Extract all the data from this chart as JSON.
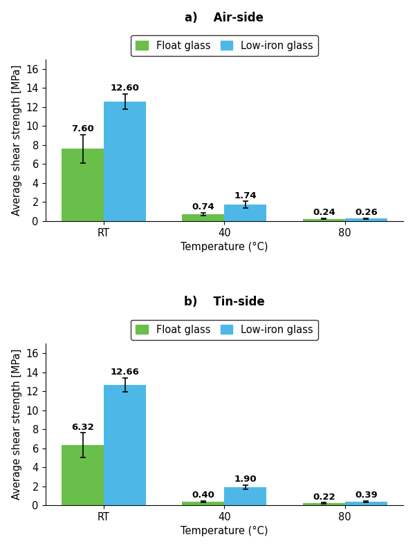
{
  "subplot_a": {
    "title_left": "a)",
    "title_right": "Air-side",
    "categories": [
      "RT",
      "40",
      "80"
    ],
    "float_values": [
      7.6,
      0.74,
      0.24
    ],
    "lowiron_values": [
      12.6,
      1.74,
      0.26
    ],
    "float_errors": [
      1.5,
      0.15,
      0.05
    ],
    "lowiron_errors": [
      0.8,
      0.35,
      0.05
    ],
    "float_labels": [
      "7.60",
      "0.74",
      "0.24"
    ],
    "lowiron_labels": [
      "12.60",
      "1.74",
      "0.26"
    ]
  },
  "subplot_b": {
    "title_left": "b)",
    "title_right": "Tin-side",
    "categories": [
      "RT",
      "40",
      "80"
    ],
    "float_values": [
      6.32,
      0.4,
      0.22
    ],
    "lowiron_values": [
      12.66,
      1.9,
      0.39
    ],
    "float_errors": [
      1.3,
      0.07,
      0.04
    ],
    "lowiron_errors": [
      0.75,
      0.22,
      0.06
    ],
    "float_labels": [
      "6.32",
      "0.40",
      "0.22"
    ],
    "lowiron_labels": [
      "12.66",
      "1.90",
      "0.39"
    ]
  },
  "float_color": "#6abf4b",
  "lowiron_color": "#4db8e8",
  "ylabel": "Average shear strength [MPa]",
  "xlabel": "Temperature (°C)",
  "ylim": [
    0,
    17
  ],
  "yticks": [
    0,
    2,
    4,
    6,
    8,
    10,
    12,
    14,
    16
  ],
  "bar_width": 0.35,
  "legend_labels": [
    "Float glass",
    "Low-iron glass"
  ],
  "label_fontsize": 10.5,
  "title_fontsize": 12,
  "tick_fontsize": 10.5,
  "value_fontsize": 9.5
}
